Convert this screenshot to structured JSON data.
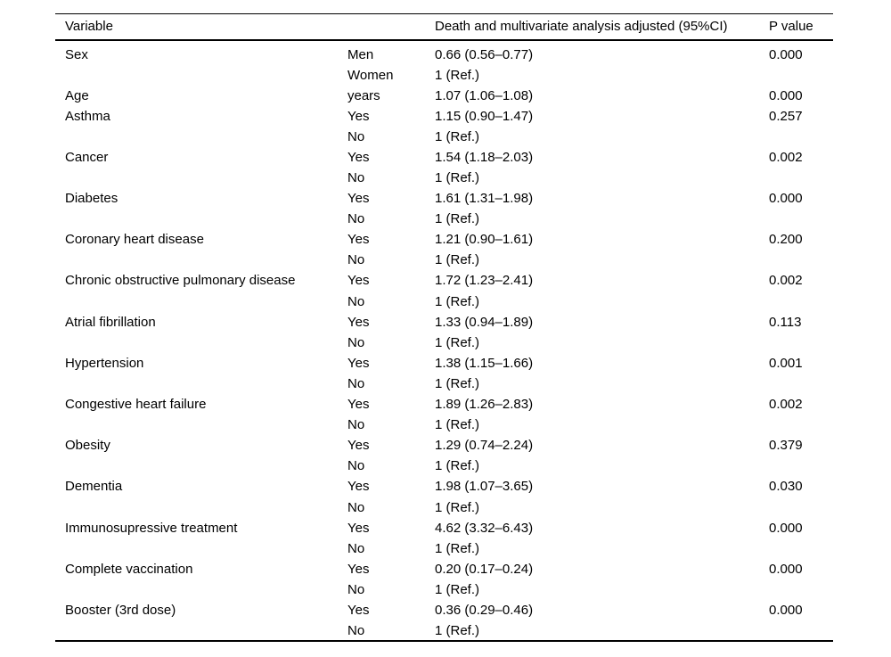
{
  "colors": {
    "background": "#ffffff",
    "text": "#000000",
    "rule": "#000000"
  },
  "table": {
    "columns": [
      "Variable",
      "",
      "Death and multivariate analysis adjusted (95%CI)",
      "P value"
    ],
    "rows": [
      {
        "variable": "Sex",
        "category": "Men",
        "estimate": "0.66 (0.56–0.77)",
        "p": "0.000"
      },
      {
        "variable": "",
        "category": "Women",
        "estimate": "1 (Ref.)",
        "p": ""
      },
      {
        "variable": "Age",
        "category": "years",
        "estimate": "1.07 (1.06–1.08)",
        "p": "0.000"
      },
      {
        "variable": "Asthma",
        "category": "Yes",
        "estimate": "1.15 (0.90–1.47)",
        "p": "0.257"
      },
      {
        "variable": "",
        "category": "No",
        "estimate": "1 (Ref.)",
        "p": ""
      },
      {
        "variable": "Cancer",
        "category": "Yes",
        "estimate": "1.54 (1.18–2.03)",
        "p": "0.002"
      },
      {
        "variable": "",
        "category": "No",
        "estimate": "1 (Ref.)",
        "p": ""
      },
      {
        "variable": "Diabetes",
        "category": "Yes",
        "estimate": "1.61 (1.31–1.98)",
        "p": "0.000"
      },
      {
        "variable": "",
        "category": "No",
        "estimate": "1 (Ref.)",
        "p": ""
      },
      {
        "variable": "Coronary heart disease",
        "category": "Yes",
        "estimate": "1.21 (0.90–1.61)",
        "p": "0.200"
      },
      {
        "variable": "",
        "category": "No",
        "estimate": "1 (Ref.)",
        "p": ""
      },
      {
        "variable": "Chronic obstructive pulmonary disease",
        "category": "Yes",
        "estimate": "1.72 (1.23–2.41)",
        "p": "0.002"
      },
      {
        "variable": "",
        "category": "No",
        "estimate": "1 (Ref.)",
        "p": ""
      },
      {
        "variable": "Atrial fibrillation",
        "category": "Yes",
        "estimate": "1.33 (0.94–1.89)",
        "p": "0.113"
      },
      {
        "variable": "",
        "category": "No",
        "estimate": "1 (Ref.)",
        "p": ""
      },
      {
        "variable": "Hypertension",
        "category": "Yes",
        "estimate": "1.38 (1.15–1.66)",
        "p": "0.001"
      },
      {
        "variable": "",
        "category": "No",
        "estimate": "1 (Ref.)",
        "p": ""
      },
      {
        "variable": "Congestive heart failure",
        "category": "Yes",
        "estimate": "1.89 (1.26–2.83)",
        "p": "0.002"
      },
      {
        "variable": "",
        "category": "No",
        "estimate": "1 (Ref.)",
        "p": ""
      },
      {
        "variable": "Obesity",
        "category": "Yes",
        "estimate": "1.29 (0.74–2.24)",
        "p": "0.379"
      },
      {
        "variable": "",
        "category": "No",
        "estimate": "1 (Ref.)",
        "p": ""
      },
      {
        "variable": "Dementia",
        "category": "Yes",
        "estimate": "1.98 (1.07–3.65)",
        "p": "0.030"
      },
      {
        "variable": "",
        "category": "No",
        "estimate": "1 (Ref.)",
        "p": ""
      },
      {
        "variable": "Immunosupressive treatment",
        "category": "Yes",
        "estimate": "4.62 (3.32–6.43)",
        "p": "0.000"
      },
      {
        "variable": "",
        "category": "No",
        "estimate": "1 (Ref.)",
        "p": ""
      },
      {
        "variable": "Complete vaccination",
        "category": "Yes",
        "estimate": "0.20 (0.17–0.24)",
        "p": "0.000"
      },
      {
        "variable": "",
        "category": "No",
        "estimate": "1 (Ref.)",
        "p": ""
      },
      {
        "variable": "Booster (3rd dose)",
        "category": "Yes",
        "estimate": "0.36 (0.29–0.46)",
        "p": "0.000"
      },
      {
        "variable": "",
        "category": "No",
        "estimate": "1 (Ref.)",
        "p": ""
      }
    ]
  }
}
